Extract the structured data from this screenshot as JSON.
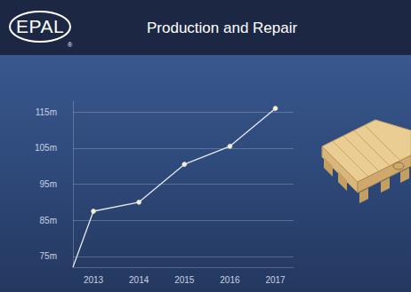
{
  "header": {
    "logo": "EPAL",
    "logo_mark": "®"
  },
  "chart_data": {
    "type": "line",
    "title": "Production and Repair",
    "x": [
      2012.55,
      2013,
      2014,
      2015,
      2016,
      2017
    ],
    "values": [
      72,
      87.5,
      90,
      100.5,
      105.5,
      116
    ],
    "color": "#e6e9ef",
    "marker": "circle",
    "xlim": [
      2012.55,
      2017.4
    ],
    "xticks": [
      2013,
      2014,
      2015,
      2016,
      2017
    ],
    "ylim": [
      72,
      118
    ],
    "yticks": [
      {
        "value": 75,
        "label": "75m"
      },
      {
        "value": 85,
        "label": "85m"
      },
      {
        "value": 95,
        "label": "95m"
      },
      {
        "value": 105,
        "label": "105m"
      },
      {
        "value": 115,
        "label": "115m"
      }
    ],
    "grid": true
  }
}
